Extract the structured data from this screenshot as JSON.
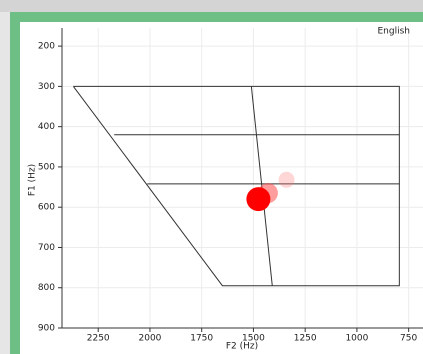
{
  "chart_data": {
    "type": "scatter",
    "annotation": "English",
    "xlabel": "F2 (Hz)",
    "ylabel": "F1 (Hz)",
    "xlim": [
      2425,
      700
    ],
    "ylim": [
      900,
      155
    ],
    "xticks": [
      2250,
      2000,
      1750,
      1500,
      1250,
      1000,
      750
    ],
    "yticks": [
      200,
      300,
      400,
      500,
      600,
      700,
      800,
      900
    ],
    "grid": true,
    "series": [
      {
        "x": [
          1340,
          1430,
          1476
        ],
        "values": [
          532,
          565,
          580
        ],
        "sizes": [
          8,
          10,
          12
        ],
        "colors": [
          "rgba(255,120,120,0.3)",
          "rgba(255,60,60,0.5)",
          "#ff0000"
        ]
      }
    ],
    "lines": [
      {
        "color": "#333",
        "x": [
          2370,
          795,
          795,
          1650,
          2370
        ],
        "values": [
          300,
          300,
          795,
          795,
          300
        ]
      },
      {
        "color": "#333",
        "x": [
          2173,
          795
        ],
        "values": [
          420,
          420
        ]
      },
      {
        "color": "#333",
        "x": [
          2013,
          795
        ],
        "values": [
          542,
          542
        ]
      },
      {
        "color": "#333",
        "x": [
          1510,
          1409
        ],
        "values": [
          300,
          795
        ]
      }
    ]
  }
}
